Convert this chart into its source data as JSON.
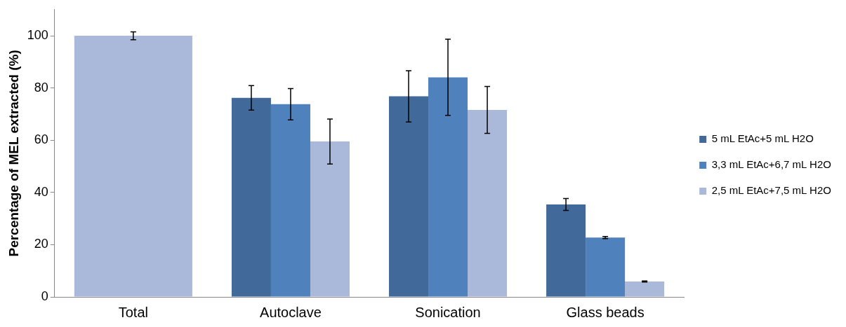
{
  "chart_data": {
    "type": "bar",
    "ylabel": "Percentage of MEL extracted (%)",
    "categories": [
      "Total",
      "Autoclave",
      "Sonication",
      "Glass beads"
    ],
    "series": [
      {
        "name": "5 mL EtAc+5 mL H2O",
        "color": "#41699a",
        "values": [
          null,
          76.2,
          76.8,
          35.4
        ],
        "errors": [
          null,
          4.7,
          9.8,
          2.3
        ]
      },
      {
        "name": "3,3 mL EtAc+6,7 mL H2O",
        "color": "#4f81bd",
        "values": [
          null,
          73.8,
          84.1,
          22.7
        ],
        "errors": [
          null,
          6,
          14.6,
          0.4
        ]
      },
      {
        "name": "2,5 mL EtAc+7,5 mL H2O",
        "color": "#aab9d9",
        "values": [
          100,
          59.5,
          71.6,
          5.9
        ],
        "errors": [
          1.5,
          8.6,
          9,
          0.2
        ]
      }
    ],
    "ylim": [
      0,
      110
    ],
    "yticks": [
      0,
      20,
      40,
      60,
      80,
      100
    ],
    "grid": false,
    "legend": "right"
  }
}
